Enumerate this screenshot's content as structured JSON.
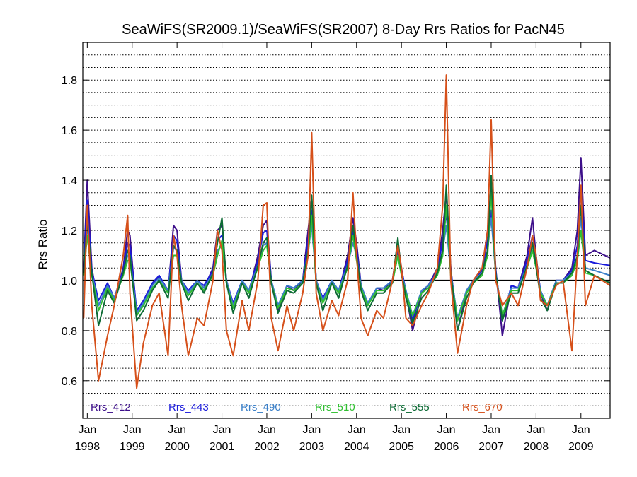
{
  "chart_data": {
    "type": "line",
    "title": "SeaWiFS(SR2009.1)/SeaWiFS(SR2007) 8-Day Rrs Ratios for PacN45",
    "xlabel": "",
    "ylabel": "Rrs Ratio",
    "xlim": [
      1997.9,
      2009.65
    ],
    "ylim": [
      0.45,
      1.95
    ],
    "y_ticks": [
      0.6,
      0.8,
      1.0,
      1.2,
      1.4,
      1.6,
      1.8
    ],
    "y_tick_labels": [
      "0.6",
      "0.8",
      "1.0",
      "1.2",
      "1.4",
      "1.6",
      "1.8"
    ],
    "x_ticks": [
      {
        "value": 1998,
        "month": "Jan",
        "year": "1998"
      },
      {
        "value": 1999,
        "month": "Jan",
        "year": "1999"
      },
      {
        "value": 2000,
        "month": "Jan",
        "year": "2000"
      },
      {
        "value": 2001,
        "month": "Jan",
        "year": "2001"
      },
      {
        "value": 2002,
        "month": "Jan",
        "year": "2002"
      },
      {
        "value": 2003,
        "month": "Jan",
        "year": "2003"
      },
      {
        "value": 2004,
        "month": "Jan",
        "year": "2004"
      },
      {
        "value": 2005,
        "month": "Jan",
        "year": "2005"
      },
      {
        "value": 2006,
        "month": "Jan",
        "year": "2006"
      },
      {
        "value": 2007,
        "month": "Jan",
        "year": "2007"
      },
      {
        "value": 2008,
        "month": "Jan",
        "year": "2008"
      },
      {
        "value": 2009,
        "month": "Jan",
        "year": "2009"
      }
    ],
    "grid": "horizontal-dotted",
    "reference_line": 1.0,
    "legend_position": "bottom-inside",
    "series": [
      {
        "name": "Rrs_412",
        "color": "#3d0f8a",
        "x": [
          1997.92,
          1998.0,
          1998.1,
          1998.25,
          1998.45,
          1998.6,
          1998.8,
          1998.9,
          1998.95,
          1999.1,
          1999.25,
          1999.45,
          1999.6,
          1999.8,
          1999.92,
          2000.0,
          2000.1,
          2000.25,
          2000.45,
          2000.6,
          2000.8,
          2000.9,
          2001.0,
          2001.1,
          2001.25,
          2001.45,
          2001.6,
          2001.8,
          2001.92,
          2002.0,
          2002.1,
          2002.25,
          2002.45,
          2002.6,
          2002.8,
          2002.92,
          2003.0,
          2003.1,
          2003.25,
          2003.45,
          2003.6,
          2003.8,
          2003.92,
          2004.0,
          2004.1,
          2004.25,
          2004.45,
          2004.6,
          2004.8,
          2004.92,
          2005.0,
          2005.1,
          2005.25,
          2005.45,
          2005.6,
          2005.8,
          2005.92,
          2006.0,
          2006.1,
          2006.25,
          2006.45,
          2006.6,
          2006.8,
          2006.92,
          2007.0,
          2007.1,
          2007.25,
          2007.45,
          2007.6,
          2007.8,
          2007.92,
          2008.0,
          2008.1,
          2008.25,
          2008.45,
          2008.6,
          2008.8,
          2008.92,
          2009.0,
          2009.1,
          2009.3,
          2009.65
        ],
        "y": [
          1.05,
          1.4,
          1.05,
          0.9,
          0.98,
          0.92,
          1.05,
          1.2,
          1.18,
          0.86,
          0.9,
          0.98,
          1.02,
          0.95,
          1.22,
          1.2,
          1.0,
          0.95,
          1.0,
          0.97,
          1.05,
          1.2,
          1.22,
          1.0,
          0.9,
          1.0,
          0.95,
          1.1,
          1.22,
          1.24,
          1.0,
          0.88,
          0.98,
          0.96,
          1.0,
          1.2,
          1.33,
          1.0,
          0.92,
          1.0,
          0.95,
          1.1,
          1.25,
          1.15,
          0.98,
          0.9,
          0.97,
          0.96,
          1.0,
          1.15,
          1.05,
          0.95,
          0.8,
          0.95,
          0.98,
          1.05,
          1.2,
          1.35,
          1.05,
          0.8,
          0.95,
          1.0,
          1.05,
          1.2,
          1.38,
          1.05,
          0.78,
          0.98,
          0.97,
          1.1,
          1.25,
          1.1,
          0.95,
          0.88,
          1.0,
          1.0,
          1.05,
          1.2,
          1.49,
          1.1,
          1.12,
          1.09
        ]
      },
      {
        "name": "Rrs_443",
        "color": "#1a1adb",
        "x": [
          1997.92,
          1998.0,
          1998.1,
          1998.25,
          1998.45,
          1998.6,
          1998.8,
          1998.9,
          1998.95,
          1999.1,
          1999.25,
          1999.45,
          1999.6,
          1999.8,
          1999.92,
          2000.0,
          2000.1,
          2000.25,
          2000.45,
          2000.6,
          2000.8,
          2000.9,
          2001.0,
          2001.1,
          2001.25,
          2001.45,
          2001.6,
          2001.8,
          2001.92,
          2002.0,
          2002.1,
          2002.25,
          2002.45,
          2002.6,
          2002.8,
          2002.92,
          2003.0,
          2003.1,
          2003.25,
          2003.45,
          2003.6,
          2003.8,
          2003.92,
          2004.0,
          2004.1,
          2004.25,
          2004.45,
          2004.6,
          2004.8,
          2004.92,
          2005.0,
          2005.1,
          2005.25,
          2005.45,
          2005.6,
          2005.8,
          2005.92,
          2006.0,
          2006.1,
          2006.25,
          2006.45,
          2006.6,
          2006.8,
          2006.92,
          2007.0,
          2007.1,
          2007.25,
          2007.45,
          2007.6,
          2007.8,
          2007.92,
          2008.0,
          2008.1,
          2008.25,
          2008.45,
          2008.6,
          2008.8,
          2008.92,
          2009.0,
          2009.1,
          2009.3,
          2009.65
        ],
        "y": [
          1.04,
          1.32,
          1.04,
          0.92,
          0.99,
          0.93,
          1.04,
          1.15,
          1.14,
          0.88,
          0.92,
          0.99,
          1.02,
          0.96,
          1.18,
          1.16,
          1.0,
          0.96,
          1.0,
          0.98,
          1.04,
          1.16,
          1.18,
          1.0,
          0.91,
          1.0,
          0.96,
          1.08,
          1.19,
          1.2,
          1.0,
          0.9,
          0.98,
          0.97,
          1.0,
          1.16,
          1.28,
          1.0,
          0.93,
          1.0,
          0.96,
          1.08,
          1.2,
          1.12,
          0.98,
          0.91,
          0.97,
          0.97,
          1.0,
          1.12,
          1.04,
          0.96,
          0.84,
          0.96,
          0.98,
          1.04,
          1.16,
          1.27,
          1.04,
          0.84,
          0.96,
          1.0,
          1.04,
          1.16,
          1.28,
          1.04,
          0.84,
          0.98,
          0.97,
          1.08,
          1.18,
          1.08,
          0.96,
          0.9,
          1.0,
          1.0,
          1.04,
          1.14,
          1.36,
          1.08,
          1.07,
          1.06
        ]
      },
      {
        "name": "Rrs_490",
        "color": "#3a7fc8",
        "x": [
          1997.92,
          1998.0,
          1998.1,
          1998.25,
          1998.45,
          1998.6,
          1998.8,
          1998.9,
          1998.95,
          1999.1,
          1999.25,
          1999.45,
          1999.6,
          1999.8,
          1999.92,
          2000.0,
          2000.1,
          2000.25,
          2000.45,
          2000.6,
          2000.8,
          2000.9,
          2001.0,
          2001.1,
          2001.25,
          2001.45,
          2001.6,
          2001.8,
          2001.92,
          2002.0,
          2002.1,
          2002.25,
          2002.45,
          2002.6,
          2002.8,
          2002.92,
          2003.0,
          2003.1,
          2003.25,
          2003.45,
          2003.6,
          2003.8,
          2003.92,
          2004.0,
          2004.1,
          2004.25,
          2004.45,
          2004.6,
          2004.8,
          2004.92,
          2005.0,
          2005.1,
          2005.25,
          2005.45,
          2005.6,
          2005.8,
          2005.92,
          2006.0,
          2006.1,
          2006.25,
          2006.45,
          2006.6,
          2006.8,
          2006.92,
          2007.0,
          2007.1,
          2007.25,
          2007.45,
          2007.6,
          2007.8,
          2007.92,
          2008.0,
          2008.1,
          2008.25,
          2008.45,
          2008.6,
          2008.8,
          2008.92,
          2009.0,
          2009.1,
          2009.3,
          2009.65
        ],
        "y": [
          1.03,
          1.22,
          1.03,
          0.9,
          0.98,
          0.93,
          1.03,
          1.1,
          1.1,
          0.87,
          0.91,
          0.98,
          1.01,
          0.96,
          1.13,
          1.12,
          1.0,
          0.95,
          1.0,
          0.97,
          1.03,
          1.12,
          1.14,
          1.0,
          0.9,
          1.0,
          0.96,
          1.06,
          1.14,
          1.15,
          1.0,
          0.9,
          0.98,
          0.97,
          1.0,
          1.12,
          1.22,
          1.0,
          0.92,
          1.0,
          0.96,
          1.06,
          1.15,
          1.1,
          0.98,
          0.91,
          0.97,
          0.97,
          1.0,
          1.1,
          1.03,
          0.96,
          0.86,
          0.96,
          0.98,
          1.03,
          1.12,
          1.22,
          1.03,
          0.85,
          0.96,
          1.0,
          1.03,
          1.12,
          1.25,
          1.03,
          0.86,
          0.97,
          0.97,
          1.06,
          1.14,
          1.06,
          0.96,
          0.9,
          1.0,
          1.0,
          1.03,
          1.1,
          1.25,
          1.05,
          1.04,
          1.02
        ]
      },
      {
        "name": "Rrs_510",
        "color": "#2fbf30",
        "x": [
          1997.92,
          1998.0,
          1998.1,
          1998.25,
          1998.45,
          1998.6,
          1998.8,
          1998.9,
          1998.95,
          1999.1,
          1999.25,
          1999.45,
          1999.6,
          1999.8,
          1999.92,
          2000.0,
          2000.1,
          2000.25,
          2000.45,
          2000.6,
          2000.8,
          2000.9,
          2001.0,
          2001.1,
          2001.25,
          2001.45,
          2001.6,
          2001.8,
          2001.92,
          2002.0,
          2002.1,
          2002.25,
          2002.45,
          2002.6,
          2002.8,
          2002.92,
          2003.0,
          2003.1,
          2003.25,
          2003.45,
          2003.6,
          2003.8,
          2003.92,
          2004.0,
          2004.1,
          2004.25,
          2004.45,
          2004.6,
          2004.8,
          2004.92,
          2005.0,
          2005.1,
          2005.25,
          2005.45,
          2005.6,
          2005.8,
          2005.92,
          2006.0,
          2006.1,
          2006.25,
          2006.45,
          2006.6,
          2006.8,
          2006.92,
          2007.0,
          2007.1,
          2007.25,
          2007.45,
          2007.6,
          2007.8,
          2007.92,
          2008.0,
          2008.1,
          2008.25,
          2008.45,
          2008.6,
          2008.8,
          2008.92,
          2009.0,
          2009.1,
          2009.3,
          2009.65
        ],
        "y": [
          1.02,
          1.18,
          1.02,
          0.88,
          0.97,
          0.92,
          1.02,
          1.08,
          1.08,
          0.86,
          0.9,
          0.97,
          1.0,
          0.95,
          1.1,
          1.1,
          0.99,
          0.94,
          0.99,
          0.96,
          1.02,
          1.1,
          1.16,
          0.99,
          0.89,
          0.99,
          0.95,
          1.05,
          1.12,
          1.14,
          0.99,
          0.89,
          0.97,
          0.96,
          0.99,
          1.1,
          1.26,
          0.99,
          0.91,
          0.99,
          0.95,
          1.05,
          1.18,
          1.08,
          0.97,
          0.9,
          0.96,
          0.96,
          0.99,
          1.1,
          1.02,
          0.95,
          0.86,
          0.95,
          0.97,
          1.02,
          1.1,
          1.3,
          1.02,
          0.84,
          0.95,
          0.99,
          1.02,
          1.1,
          1.35,
          1.02,
          0.86,
          0.96,
          0.96,
          1.05,
          1.12,
          1.05,
          0.95,
          0.9,
          0.99,
          0.99,
          1.02,
          1.08,
          1.2,
          1.03,
          1.02,
          0.99
        ]
      },
      {
        "name": "Rrs_555",
        "color": "#0d6b35",
        "x": [
          1997.92,
          1998.0,
          1998.1,
          1998.25,
          1998.45,
          1998.6,
          1998.8,
          1998.9,
          1998.95,
          1999.1,
          1999.25,
          1999.45,
          1999.6,
          1999.8,
          1999.92,
          2000.0,
          2000.1,
          2000.25,
          2000.45,
          2000.6,
          2000.8,
          2000.9,
          2001.0,
          2001.1,
          2001.25,
          2001.45,
          2001.6,
          2001.8,
          2001.92,
          2002.0,
          2002.1,
          2002.25,
          2002.45,
          2002.6,
          2002.8,
          2002.92,
          2003.0,
          2003.1,
          2003.25,
          2003.45,
          2003.6,
          2003.8,
          2003.92,
          2004.0,
          2004.1,
          2004.25,
          2004.45,
          2004.6,
          2004.8,
          2004.92,
          2005.0,
          2005.1,
          2005.25,
          2005.45,
          2005.6,
          2005.8,
          2005.92,
          2006.0,
          2006.1,
          2006.25,
          2006.45,
          2006.6,
          2006.8,
          2006.92,
          2007.0,
          2007.1,
          2007.25,
          2007.45,
          2007.6,
          2007.8,
          2007.92,
          2008.0,
          2008.1,
          2008.25,
          2008.45,
          2008.6,
          2008.8,
          2008.92,
          2009.0,
          2009.1,
          2009.3,
          2009.65
        ],
        "y": [
          1.03,
          1.24,
          1.03,
          0.82,
          0.96,
          0.91,
          1.03,
          1.12,
          1.1,
          0.84,
          0.88,
          0.96,
          1.0,
          0.93,
          1.14,
          1.12,
          0.99,
          0.92,
          0.99,
          0.95,
          1.03,
          1.15,
          1.25,
          0.99,
          0.87,
          0.99,
          0.93,
          1.06,
          1.15,
          1.17,
          0.99,
          0.87,
          0.96,
          0.95,
          0.99,
          1.12,
          1.34,
          0.99,
          0.88,
          0.99,
          0.93,
          1.06,
          1.22,
          1.1,
          0.96,
          0.88,
          0.95,
          0.95,
          0.99,
          1.17,
          1.03,
          0.93,
          0.83,
          0.93,
          0.96,
          1.03,
          1.12,
          1.38,
          1.03,
          0.8,
          0.93,
          0.99,
          1.03,
          1.12,
          1.42,
          1.03,
          0.84,
          0.95,
          0.95,
          1.06,
          1.15,
          1.06,
          0.93,
          0.88,
          0.99,
          0.99,
          1.03,
          1.1,
          1.3,
          1.04,
          1.02,
          0.99
        ]
      },
      {
        "name": "Rrs_670",
        "color": "#d6501a",
        "x": [
          1997.92,
          1998.0,
          1998.1,
          1998.25,
          1998.45,
          1998.6,
          1998.8,
          1998.9,
          1998.95,
          1999.1,
          1999.25,
          1999.45,
          1999.6,
          1999.8,
          1999.92,
          2000.0,
          2000.1,
          2000.25,
          2000.45,
          2000.6,
          2000.8,
          2000.9,
          2001.0,
          2001.1,
          2001.25,
          2001.45,
          2001.6,
          2001.8,
          2001.92,
          2002.0,
          2002.1,
          2002.25,
          2002.45,
          2002.6,
          2002.8,
          2002.92,
          2003.0,
          2003.1,
          2003.25,
          2003.45,
          2003.6,
          2003.8,
          2003.92,
          2004.0,
          2004.1,
          2004.25,
          2004.45,
          2004.6,
          2004.8,
          2004.92,
          2005.0,
          2005.1,
          2005.25,
          2005.45,
          2005.6,
          2005.8,
          2005.92,
          2006.0,
          2006.1,
          2006.25,
          2006.45,
          2006.6,
          2006.8,
          2006.92,
          2007.0,
          2007.1,
          2007.25,
          2007.45,
          2007.6,
          2007.8,
          2007.92,
          2008.0,
          2008.1,
          2008.25,
          2008.45,
          2008.6,
          2008.8,
          2008.92,
          2009.0,
          2009.1,
          2009.3,
          2009.65
        ],
        "y": [
          0.85,
          1.3,
          0.9,
          0.6,
          0.78,
          0.9,
          1.1,
          1.26,
          0.95,
          0.57,
          0.75,
          0.9,
          0.95,
          0.7,
          1.18,
          1.1,
          0.9,
          0.7,
          0.85,
          0.82,
          1.0,
          1.2,
          1.12,
          0.8,
          0.7,
          0.92,
          0.8,
          1.0,
          1.3,
          1.31,
          0.85,
          0.72,
          0.9,
          0.8,
          0.95,
          1.1,
          1.59,
          0.95,
          0.8,
          0.92,
          0.86,
          1.0,
          1.35,
          1.1,
          0.85,
          0.78,
          0.88,
          0.85,
          1.0,
          1.14,
          1.05,
          0.85,
          0.82,
          0.9,
          0.95,
          1.05,
          1.3,
          1.82,
          1.0,
          0.71,
          0.9,
          1.0,
          1.05,
          1.2,
          1.64,
          1.0,
          0.9,
          0.95,
          0.9,
          1.05,
          1.18,
          1.1,
          0.92,
          0.9,
          0.98,
          1.0,
          0.72,
          1.1,
          1.38,
          0.9,
          1.02,
          0.98
        ]
      }
    ]
  }
}
